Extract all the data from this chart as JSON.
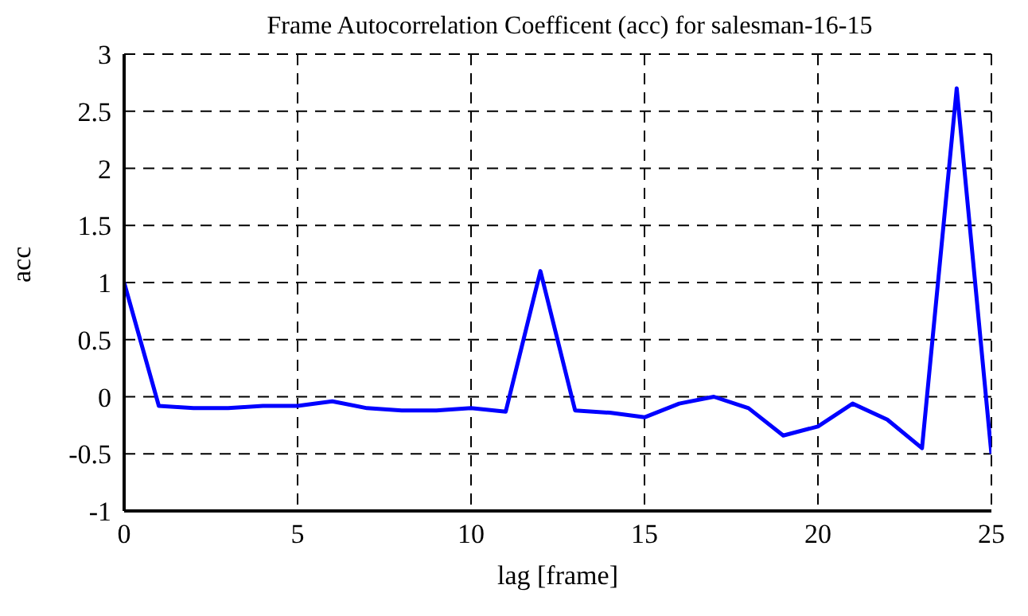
{
  "chart_data": {
    "type": "line",
    "title": "Frame Autocorrelation Coefficent (acc) for salesman-16-15",
    "xlabel": "lag [frame]",
    "ylabel": "acc",
    "x": [
      0,
      1,
      2,
      3,
      4,
      5,
      6,
      7,
      8,
      9,
      10,
      11,
      12,
      13,
      14,
      15,
      16,
      17,
      18,
      19,
      20,
      21,
      22,
      23,
      24,
      25
    ],
    "series": [
      {
        "color": "#0000ff",
        "values": [
          1,
          -0.08,
          -0.1,
          -0.1,
          -0.08,
          -0.08,
          -0.04,
          -0.1,
          -0.12,
          -0.12,
          -0.1,
          -0.13,
          1.1,
          -0.12,
          -0.14,
          -0.18,
          -0.06,
          0,
          -0.1,
          -0.34,
          -0.26,
          -0.06,
          -0.2,
          -0.45,
          2.7,
          -0.5
        ]
      }
    ],
    "xlim": [
      0,
      25
    ],
    "xticks": [
      0,
      5,
      10,
      15,
      20,
      25
    ],
    "ylim": [
      -1,
      3
    ],
    "yticks": [
      -1,
      -0.5,
      0,
      0.5,
      1,
      1.5,
      2,
      2.5,
      3
    ],
    "grid": true,
    "marker": "none",
    "line_style": "solid",
    "legend": false
  }
}
